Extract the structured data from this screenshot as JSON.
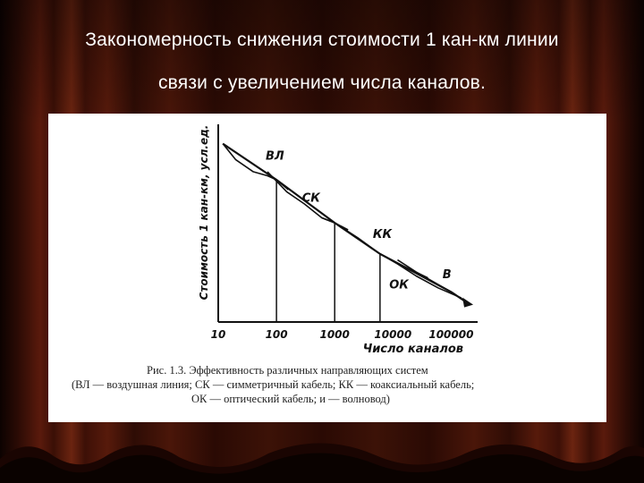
{
  "slide": {
    "title_line1": "Закономерность снижения стоимости 1 кан-км линии",
    "title_line2": "связи с увеличением числа каналов."
  },
  "caption": {
    "line1": "Рис. 1.3. Эффективность различных направляющих систем",
    "line2": "(ВЛ — воздушная линия; СК — симметричный кабель; КК — коаксиальный кабель;",
    "line3": "ОК — оптический кабель; и — волновод)"
  },
  "colors": {
    "curtain": "#3a0f06",
    "panel": "#ffffff",
    "ink": "#111111"
  },
  "chart_data": {
    "type": "line",
    "ylabel": "Стоимость 1 кан-км, усл.ед.",
    "xlabel": "Число каналов",
    "x_scale": "log",
    "xlim": [
      10,
      200000
    ],
    "x_ticks": [
      10,
      100,
      1000,
      10000,
      100000
    ],
    "x_tick_labels": [
      "10",
      "100",
      "1000",
      "10000",
      "100000"
    ],
    "y_ticks_shown": false,
    "series": [
      {
        "name": "ВЛ",
        "x": [
          12,
          20,
          40,
          70,
          100,
          160
        ],
        "y": [
          8.9,
          8.1,
          7.5,
          7.3,
          7.1,
          6.6
        ]
      },
      {
        "name": "СК",
        "x": [
          70,
          150,
          300,
          600,
          1000,
          1700
        ],
        "y": [
          7.5,
          6.5,
          5.9,
          5.2,
          4.95,
          4.6
        ]
      },
      {
        "name": "КК",
        "x": [
          600,
          1000,
          2500,
          6000,
          15000,
          40000
        ],
        "y": [
          5.2,
          4.95,
          4.2,
          3.4,
          2.8,
          2.2
        ]
      },
      {
        "name": "ОК",
        "x": [
          6000,
          12000,
          25000,
          60000,
          150000
        ],
        "y": [
          3.4,
          2.9,
          2.3,
          1.7,
          1.2
        ]
      },
      {
        "name": "В",
        "x": [
          12000,
          25000,
          50000,
          100000,
          180000
        ],
        "y": [
          3.1,
          2.5,
          2.0,
          1.5,
          1.0
        ]
      }
    ],
    "envelope": {
      "x": [
        12,
        100,
        1000,
        6000,
        100000,
        180000
      ],
      "y": [
        8.9,
        7.1,
        4.95,
        3.4,
        1.5,
        1.0
      ]
    },
    "drop_lines_at_x": [
      100,
      1000,
      6000
    ]
  }
}
